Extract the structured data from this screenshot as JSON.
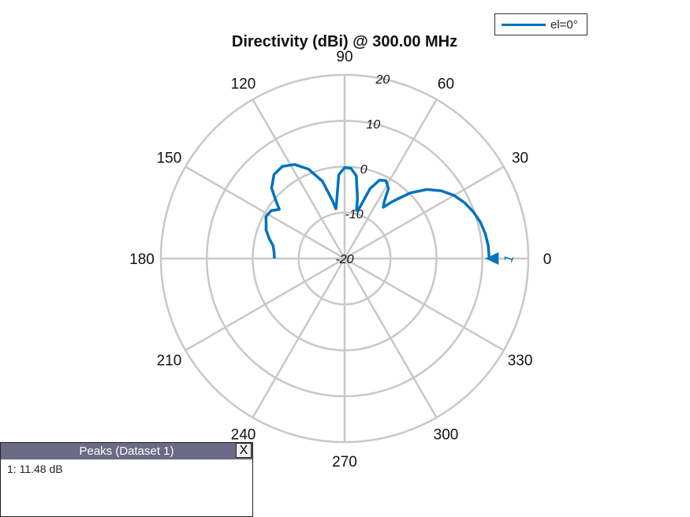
{
  "chart_data": {
    "type": "polar",
    "title": "Directivity (dBi) @ 300.00 MHz",
    "angle_ticks": [
      "0",
      "30",
      "60",
      "90",
      "120",
      "150",
      "180",
      "210",
      "240",
      "270",
      "300",
      "330"
    ],
    "angle_tick_values": [
      0,
      30,
      60,
      90,
      120,
      150,
      180,
      210,
      240,
      270,
      300,
      330
    ],
    "radial_ticks": [
      "-20",
      "-10",
      "0",
      "10",
      "20"
    ],
    "radial_tick_values": [
      -20,
      -10,
      0,
      10,
      20
    ],
    "rlim": [
      -20,
      20
    ],
    "grid": true,
    "legend_position": "top-right",
    "series": [
      {
        "name": "el=0°",
        "color": "#0072bd",
        "points": [
          [
            0,
            11.48
          ],
          [
            5,
            11.4
          ],
          [
            10,
            11.1
          ],
          [
            15,
            10.6
          ],
          [
            20,
            9.8
          ],
          [
            25,
            8.8
          ],
          [
            30,
            7.5
          ],
          [
            35,
            5.7
          ],
          [
            40,
            3.4
          ],
          [
            45,
            0.2
          ],
          [
            50,
            -3.8
          ],
          [
            53,
            -6.0
          ],
          [
            55,
            -5.0
          ],
          [
            58,
            -2.0
          ],
          [
            62,
            -0.8
          ],
          [
            66,
            -1.3
          ],
          [
            70,
            -3.8
          ],
          [
            74,
            -8.8
          ],
          [
            76,
            -9.2
          ],
          [
            78,
            -6.5
          ],
          [
            82,
            -1.8
          ],
          [
            86,
            -0.3
          ],
          [
            90,
            -0.2
          ],
          [
            94,
            -1.7
          ],
          [
            98,
            -7.5
          ],
          [
            100,
            -9.0
          ],
          [
            102,
            -7.0
          ],
          [
            106,
            -2.5
          ],
          [
            112,
            1.0
          ],
          [
            118,
            3.2
          ],
          [
            124,
            4.2
          ],
          [
            130,
            3.9
          ],
          [
            136,
            2.1
          ],
          [
            140,
            -0.5
          ],
          [
            143,
            -2.2
          ],
          [
            147,
            -0.9
          ],
          [
            152,
            -0.6
          ],
          [
            156,
            -1.3
          ],
          [
            160,
            -1.8
          ],
          [
            165,
            -3.0
          ],
          [
            170,
            -4.2
          ],
          [
            175,
            -4.6
          ],
          [
            180,
            -4.7
          ]
        ]
      }
    ],
    "peak_marker": {
      "label": "1",
      "angle": 0,
      "value": 11.48
    }
  },
  "legend": {
    "label": "el=0°"
  },
  "peaks": {
    "title": "Peaks (Dataset 1)",
    "close_label": "X",
    "rows": [
      "1: 11.48 dB"
    ]
  }
}
